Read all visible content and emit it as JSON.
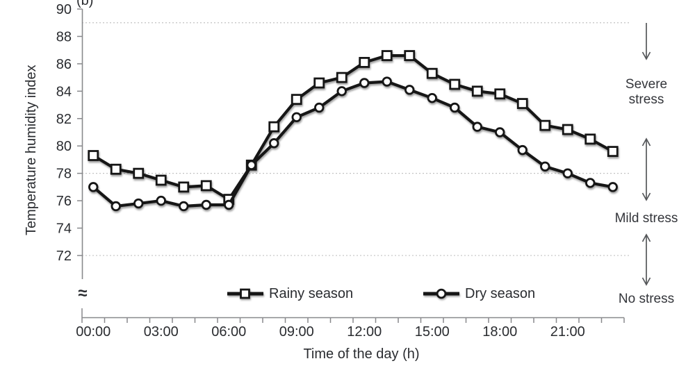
{
  "panel_label": "(b)",
  "axis_break_symbol": "≈",
  "chart_data": {
    "type": "line",
    "xlabel": "Time of the day (h)",
    "ylabel": "Temperature humidity index",
    "x_categories": [
      "00:00",
      "01:00",
      "02:00",
      "03:00",
      "04:00",
      "05:00",
      "06:00",
      "07:00",
      "08:00",
      "09:00",
      "10:00",
      "11:00",
      "12:00",
      "13:00",
      "14:00",
      "15:00",
      "16:00",
      "17:00",
      "18:00",
      "19:00",
      "20:00",
      "21:00",
      "22:00",
      "23:00"
    ],
    "x_tick_labels": [
      "00:00",
      "03:00",
      "06:00",
      "09:00",
      "12:00",
      "15:00",
      "18:00",
      "21:00"
    ],
    "x_tick_hours": [
      0,
      3,
      6,
      9,
      12,
      15,
      18,
      21
    ],
    "y_ticks": [
      90,
      88,
      86,
      84,
      82,
      80,
      78,
      76,
      74,
      72
    ],
    "ylim": [
      72,
      90
    ],
    "y_axis_break_below": 72,
    "gridlines_at": [
      89,
      78,
      72
    ],
    "grid_style": "horizontal-dotted",
    "legend_position": "bottom",
    "series": [
      {
        "name": "Rainy season",
        "marker": "square",
        "color": "#161616",
        "values": [
          79.3,
          78.3,
          78.0,
          77.5,
          77.0,
          77.1,
          76.1,
          78.6,
          81.4,
          83.4,
          84.6,
          85.0,
          86.1,
          86.6,
          86.6,
          85.3,
          84.5,
          84.0,
          83.8,
          83.1,
          81.5,
          81.2,
          80.5,
          79.6
        ]
      },
      {
        "name": "Dry season",
        "marker": "circle",
        "color": "#161616",
        "values": [
          77.0,
          75.6,
          75.8,
          76.0,
          75.6,
          75.7,
          75.7,
          78.6,
          80.2,
          82.1,
          82.8,
          84.0,
          84.6,
          84.7,
          84.1,
          83.5,
          82.8,
          81.4,
          81.0,
          79.7,
          78.5,
          78.0,
          77.3,
          77.0
        ]
      }
    ]
  },
  "stress_zones": {
    "labels": [
      "Severe stress",
      "Mild stress",
      "No stress"
    ],
    "boundaries": [
      89,
      78,
      72
    ]
  },
  "colors": {
    "line": "#161616",
    "marker_fill": "#ffffff",
    "axis": "#88898c",
    "gridline": "#c3c3c3",
    "text": "#2a2c30",
    "annotation": "#55575a"
  }
}
